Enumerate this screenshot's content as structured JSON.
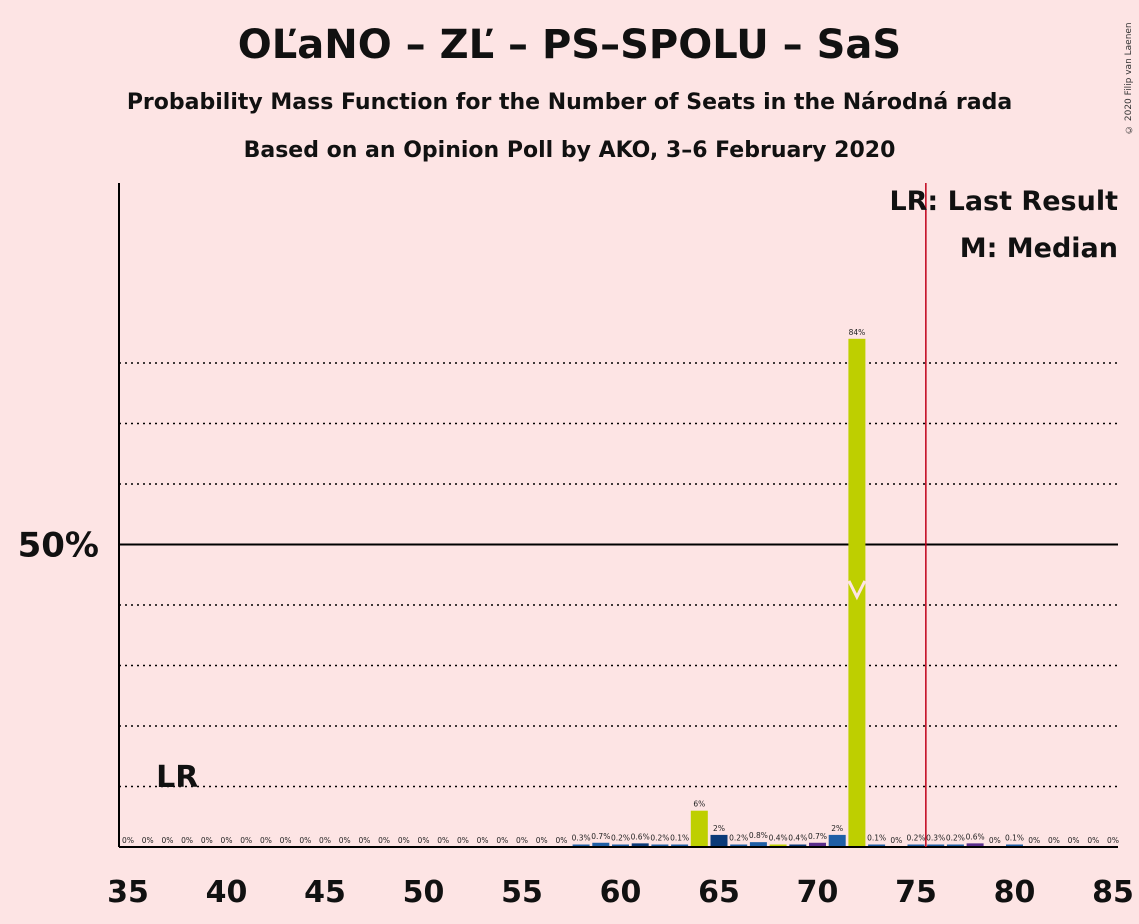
{
  "title": "OĽaNO – ZĽ – PS–SPOLU – SaS",
  "subtitle": "Probability Mass Function for the Number of Seats in the Národná rada",
  "subtitle2": "Based on an Opinion Poll by AKO, 3–6 February 2020",
  "copyright": "© 2020 Filip van Laenen",
  "legend": {
    "lr": "LR: Last Result",
    "median": "M: Median"
  },
  "chart_data": {
    "type": "bar",
    "xlim": [
      35,
      85
    ],
    "ylim": [
      0,
      92
    ],
    "y_tick_label": "50%",
    "y_tick_value": 50,
    "gridlines": [
      10,
      20,
      30,
      40,
      60,
      70,
      80
    ],
    "x_ticks": [
      35,
      40,
      45,
      50,
      55,
      60,
      65,
      70,
      75,
      80,
      85
    ],
    "last_result_seat": 37.5,
    "last_result_label": "LR",
    "majority_line": 75.5,
    "median_seat": 72,
    "median_y": 42,
    "colors": {
      "olano": "#BECF00",
      "zl": "#1F5FA6",
      "ps": "#0B3A78",
      "sas": "#5B2E8C",
      "majority": "#C0001A"
    },
    "bars": [
      {
        "seat": 35,
        "value": 0,
        "label": "0%",
        "color": "#1F5FA6"
      },
      {
        "seat": 36,
        "value": 0,
        "label": "0%",
        "color": "#1F5FA6"
      },
      {
        "seat": 37,
        "value": 0,
        "label": "0%",
        "color": "#1F5FA6"
      },
      {
        "seat": 38,
        "value": 0,
        "label": "0%",
        "color": "#1F5FA6"
      },
      {
        "seat": 39,
        "value": 0,
        "label": "0%",
        "color": "#1F5FA6"
      },
      {
        "seat": 40,
        "value": 0,
        "label": "0%",
        "color": "#1F5FA6"
      },
      {
        "seat": 41,
        "value": 0,
        "label": "0%",
        "color": "#1F5FA6"
      },
      {
        "seat": 42,
        "value": 0,
        "label": "0%",
        "color": "#1F5FA6"
      },
      {
        "seat": 43,
        "value": 0,
        "label": "0%",
        "color": "#1F5FA6"
      },
      {
        "seat": 44,
        "value": 0,
        "label": "0%",
        "color": "#1F5FA6"
      },
      {
        "seat": 45,
        "value": 0,
        "label": "0%",
        "color": "#1F5FA6"
      },
      {
        "seat": 46,
        "value": 0,
        "label": "0%",
        "color": "#1F5FA6"
      },
      {
        "seat": 47,
        "value": 0,
        "label": "0%",
        "color": "#1F5FA6"
      },
      {
        "seat": 48,
        "value": 0,
        "label": "0%",
        "color": "#1F5FA6"
      },
      {
        "seat": 49,
        "value": 0,
        "label": "0%",
        "color": "#1F5FA6"
      },
      {
        "seat": 50,
        "value": 0,
        "label": "0%",
        "color": "#1F5FA6"
      },
      {
        "seat": 51,
        "value": 0,
        "label": "0%",
        "color": "#1F5FA6"
      },
      {
        "seat": 52,
        "value": 0,
        "label": "0%",
        "color": "#1F5FA6"
      },
      {
        "seat": 53,
        "value": 0,
        "label": "0%",
        "color": "#1F5FA6"
      },
      {
        "seat": 54,
        "value": 0,
        "label": "0%",
        "color": "#1F5FA6"
      },
      {
        "seat": 55,
        "value": 0,
        "label": "0%",
        "color": "#1F5FA6"
      },
      {
        "seat": 56,
        "value": 0,
        "label": "0%",
        "color": "#1F5FA6"
      },
      {
        "seat": 57,
        "value": 0,
        "label": "0%",
        "color": "#1F5FA6"
      },
      {
        "seat": 58,
        "value": 0.3,
        "label": "0.3%",
        "color": "#1F5FA6"
      },
      {
        "seat": 59,
        "value": 0.7,
        "label": "0.7%",
        "color": "#1F5FA6"
      },
      {
        "seat": 60,
        "value": 0.2,
        "label": "0.2%",
        "color": "#1F5FA6"
      },
      {
        "seat": 61,
        "value": 0.6,
        "label": "0.6%",
        "color": "#0B3A78"
      },
      {
        "seat": 62,
        "value": 0.2,
        "label": "0.2%",
        "color": "#1F5FA6"
      },
      {
        "seat": 63,
        "value": 0.1,
        "label": "0.1%",
        "color": "#1F5FA6"
      },
      {
        "seat": 64,
        "value": 6,
        "label": "6%",
        "color": "#BECF00"
      },
      {
        "seat": 65,
        "value": 2,
        "label": "2%",
        "color": "#0B3A78"
      },
      {
        "seat": 66,
        "value": 0.2,
        "label": "0.2%",
        "color": "#1F5FA6"
      },
      {
        "seat": 67,
        "value": 0.8,
        "label": "0.8%",
        "color": "#1F5FA6"
      },
      {
        "seat": 68,
        "value": 0.4,
        "label": "0.4%",
        "color": "#BECF00"
      },
      {
        "seat": 69,
        "value": 0.4,
        "label": "0.4%",
        "color": "#0B3A78"
      },
      {
        "seat": 70,
        "value": 0.7,
        "label": "0.7%",
        "color": "#5B2E8C"
      },
      {
        "seat": 71,
        "value": 2,
        "label": "2%",
        "color": "#1F5FA6"
      },
      {
        "seat": 72,
        "value": 84,
        "label": "84%",
        "color": "#BECF00"
      },
      {
        "seat": 73,
        "value": 0.1,
        "label": "0.1%",
        "color": "#1F5FA6"
      },
      {
        "seat": 74,
        "value": 0,
        "label": "0%",
        "color": "#1F5FA6"
      },
      {
        "seat": 75,
        "value": 0.2,
        "label": "0.2%",
        "color": "#1F5FA6"
      },
      {
        "seat": 76,
        "value": 0.3,
        "label": "0.3%",
        "color": "#1F5FA6"
      },
      {
        "seat": 77,
        "value": 0.2,
        "label": "0.2%",
        "color": "#1F5FA6"
      },
      {
        "seat": 78,
        "value": 0.6,
        "label": "0.6%",
        "color": "#5B2E8C"
      },
      {
        "seat": 79,
        "value": 0,
        "label": "0%",
        "color": "#1F5FA6"
      },
      {
        "seat": 80,
        "value": 0.1,
        "label": "0.1%",
        "color": "#1F5FA6"
      },
      {
        "seat": 81,
        "value": 0,
        "label": "0%",
        "color": "#1F5FA6"
      },
      {
        "seat": 82,
        "value": 0,
        "label": "0%",
        "color": "#1F5FA6"
      },
      {
        "seat": 83,
        "value": 0,
        "label": "0%",
        "color": "#1F5FA6"
      },
      {
        "seat": 84,
        "value": 0,
        "label": "0%",
        "color": "#1F5FA6"
      },
      {
        "seat": 85,
        "value": 0,
        "label": "0%",
        "color": "#1F5FA6"
      }
    ]
  }
}
